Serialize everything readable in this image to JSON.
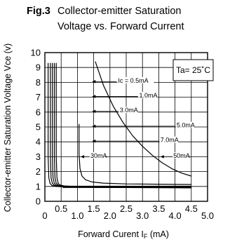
{
  "figure": {
    "fig_number": "Fig.3",
    "title_line1": "Collector-emitter Saturation",
    "title_line2": "Voltage vs. Forward Current"
  },
  "chart_data": {
    "type": "line",
    "xlabel_main": "Forward Curent I",
    "xlabel_sub": "F",
    "xlabel_unit": " (mA)",
    "ylabel": "Collector-emitter Saturation Voltage Vce (v)",
    "xlim": [
      0,
      5.0
    ],
    "ylim": [
      0,
      10
    ],
    "x_ticks": [
      "0",
      "0.5",
      "1.0",
      "1.5",
      "2.0",
      "2.5",
      "3.0",
      "3.5",
      "4.0",
      "4.5",
      "5.0"
    ],
    "y_ticks": [
      "0",
      "1",
      "2",
      "3",
      "4",
      "5",
      "6",
      "7",
      "8",
      "9",
      "10"
    ],
    "grid": true,
    "condition_label": "Ta= 25˚C",
    "series": [
      {
        "name": "Ic = 0.5mA",
        "x": [
          0.1,
          0.1,
          0.12,
          0.16,
          0.22,
          0.35,
          0.6,
          1.0,
          2.0,
          3.0,
          4.5
        ],
        "y": [
          9.3,
          3.0,
          1.6,
          1.2,
          1.06,
          1.0,
          0.97,
          0.95,
          0.93,
          0.92,
          0.9
        ]
      },
      {
        "name": "1.0mA",
        "x": [
          0.17,
          0.17,
          0.19,
          0.23,
          0.29,
          0.42,
          0.65,
          1.0,
          2.0,
          3.0,
          4.5
        ],
        "y": [
          9.3,
          3.0,
          1.6,
          1.2,
          1.07,
          1.01,
          0.98,
          0.96,
          0.94,
          0.93,
          0.92
        ]
      },
      {
        "name": "3.0mA",
        "x": [
          0.23,
          0.23,
          0.25,
          0.29,
          0.35,
          0.47,
          0.7,
          1.0,
          2.0,
          3.0,
          4.5
        ],
        "y": [
          9.3,
          3.0,
          1.6,
          1.2,
          1.08,
          1.02,
          0.99,
          0.97,
          0.95,
          0.94,
          0.93
        ]
      },
      {
        "name": "5.0mA",
        "x": [
          0.29,
          0.29,
          0.31,
          0.35,
          0.41,
          0.52,
          0.75,
          1.0,
          2.0,
          3.0,
          4.5
        ],
        "y": [
          9.3,
          3.0,
          1.6,
          1.2,
          1.09,
          1.03,
          1.0,
          0.98,
          0.96,
          0.95,
          0.94
        ]
      },
      {
        "name": "7.0mA",
        "x": [
          0.35,
          0.35,
          0.37,
          0.41,
          0.47,
          0.58,
          0.8,
          1.0,
          2.0,
          3.0,
          4.5
        ],
        "y": [
          9.3,
          3.0,
          1.6,
          1.2,
          1.1,
          1.04,
          1.01,
          0.99,
          0.97,
          0.96,
          0.95
        ]
      },
      {
        "name": "30mA",
        "x": [
          1.05,
          1.05,
          1.08,
          1.14,
          1.25,
          1.45,
          1.8,
          2.5,
          3.5,
          4.5
        ],
        "y": [
          5.2,
          3.2,
          2.2,
          1.7,
          1.45,
          1.3,
          1.22,
          1.17,
          1.15,
          1.13
        ]
      },
      {
        "name": "50mA",
        "x": [
          1.55,
          1.8,
          2.1,
          2.4,
          2.7,
          3.0,
          3.3,
          3.6,
          3.9,
          4.2,
          4.5
        ],
        "y": [
          9.4,
          7.8,
          6.4,
          5.3,
          4.4,
          3.7,
          3.1,
          2.6,
          2.2,
          1.9,
          1.7
        ]
      }
    ],
    "annotations": [
      {
        "text": "Ic = 0.5mA",
        "x": 2.25,
        "y": 8.05,
        "arrow_to": [
          1.45,
          8.05
        ]
      },
      {
        "text": "1.0mA",
        "x": 2.9,
        "y": 7.05,
        "arrow_to": [
          1.45,
          7.05
        ]
      },
      {
        "text": "3.0mA",
        "x": 2.3,
        "y": 6.05,
        "arrow_to": [
          1.45,
          6.05
        ]
      },
      {
        "text": "5.0mA",
        "x": 4.05,
        "y": 5.05,
        "arrow_to": [
          1.45,
          5.05
        ]
      },
      {
        "text": "7.0mA",
        "x": 3.55,
        "y": 4.05,
        "arrow_to": [
          1.45,
          4.05
        ]
      },
      {
        "text": "30mA",
        "x": 1.4,
        "y": 3.0,
        "arrow_to": [
          1.1,
          3.0
        ]
      },
      {
        "text": "50mA",
        "x": 3.95,
        "y": 3.0,
        "arrow_to": [
          3.55,
          3.0
        ]
      }
    ]
  }
}
